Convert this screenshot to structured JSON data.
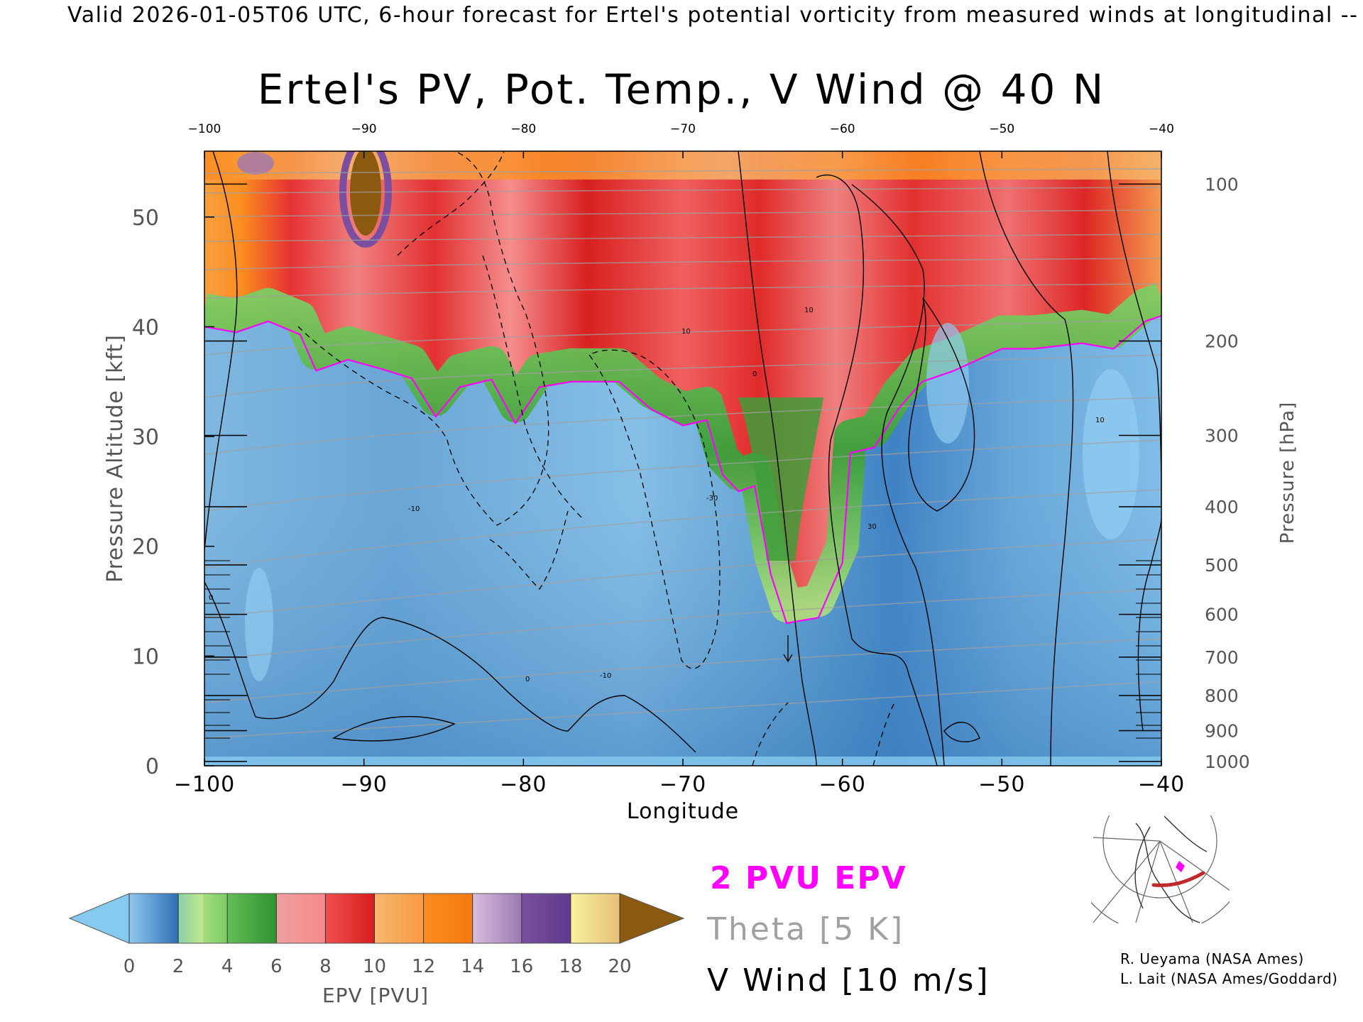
{
  "header": "Valid 2026-01-05T06 UTC, 6-hour forecast for Ertel's potential vorticity from measured winds at longitudinal -- NCE",
  "chart_data": {
    "type": "heatmap",
    "title": "Ertel's PV, Pot. Temp., V Wind @ 40 N",
    "xlabel": "Longitude",
    "ylabel": "Pressure Altitude [kft]",
    "y2label": "Pressure [hPa]",
    "xlim": [
      -100,
      -40
    ],
    "ylim": [
      0,
      56
    ],
    "x_ticks": [
      -100,
      -90,
      -80,
      -70,
      -60,
      -50,
      -40
    ],
    "y_ticks": [
      0,
      10,
      20,
      30,
      40,
      50
    ],
    "pressure_ticks": [
      {
        "hpa": "100",
        "kft": 53.0
      },
      {
        "hpa": "200",
        "kft": 38.7
      },
      {
        "hpa": "300",
        "kft": 30.1
      },
      {
        "hpa": "400",
        "kft": 23.6
      },
      {
        "hpa": "500",
        "kft": 18.3
      },
      {
        "hpa": "600",
        "kft": 13.8
      },
      {
        "hpa": "700",
        "kft": 9.9
      },
      {
        "hpa": "800",
        "kft": 6.4
      },
      {
        "hpa": "900",
        "kft": 3.2
      },
      {
        "hpa": "1000",
        "kft": 0.4
      }
    ],
    "pv_2pvu_boundary": [
      {
        "lon": -100,
        "kft": 40.0
      },
      {
        "lon": -98,
        "kft": 39.5
      },
      {
        "lon": -96,
        "kft": 40.5
      },
      {
        "lon": -94,
        "kft": 39.3
      },
      {
        "lon": -93,
        "kft": 36.0
      },
      {
        "lon": -91,
        "kft": 37.0
      },
      {
        "lon": -89,
        "kft": 36.2
      },
      {
        "lon": -87,
        "kft": 35.3
      },
      {
        "lon": -85.5,
        "kft": 31.8
      },
      {
        "lon": -84,
        "kft": 34.5
      },
      {
        "lon": -82,
        "kft": 35.2
      },
      {
        "lon": -80.5,
        "kft": 31.2
      },
      {
        "lon": -79,
        "kft": 34.5
      },
      {
        "lon": -77,
        "kft": 35.0
      },
      {
        "lon": -74,
        "kft": 35.0
      },
      {
        "lon": -72,
        "kft": 32.5
      },
      {
        "lon": -70,
        "kft": 31.0
      },
      {
        "lon": -68.5,
        "kft": 31.5
      },
      {
        "lon": -67.5,
        "kft": 26.5
      },
      {
        "lon": -66.5,
        "kft": 25.0
      },
      {
        "lon": -65.5,
        "kft": 25.5
      },
      {
        "lon": -64.5,
        "kft": 17.5
      },
      {
        "lon": -63.5,
        "kft": 13.0
      },
      {
        "lon": -61.5,
        "kft": 13.5
      },
      {
        "lon": -60,
        "kft": 18.5
      },
      {
        "lon": -59.5,
        "kft": 28.5
      },
      {
        "lon": -58,
        "kft": 29.0
      },
      {
        "lon": -56.5,
        "kft": 32.5
      },
      {
        "lon": -55,
        "kft": 35.0
      },
      {
        "lon": -53,
        "kft": 36.0
      },
      {
        "lon": -50,
        "kft": 38.0
      },
      {
        "lon": -48,
        "kft": 38.0
      },
      {
        "lon": -45,
        "kft": 38.5
      },
      {
        "lon": -43,
        "kft": 38.0
      },
      {
        "lon": -41,
        "kft": 40.5
      },
      {
        "lon": -40,
        "kft": 41.0
      }
    ],
    "colorbar": {
      "label": "EPV [PVU]",
      "ticks": [
        "0",
        "2",
        "4",
        "6",
        "8",
        "10",
        "12",
        "14",
        "16",
        "18",
        "20"
      ],
      "bins": [
        {
          "from": 0,
          "to": 2,
          "colors": [
            "#8fc8ee",
            "#2f6eb3"
          ]
        },
        {
          "from": 2,
          "to": 3,
          "colors": [
            "#88d0a8",
            "#c4e88a"
          ]
        },
        {
          "from": 3,
          "to": 4,
          "colors": [
            "#a6dc80",
            "#7ccc63"
          ]
        },
        {
          "from": 4,
          "to": 6,
          "colors": [
            "#64bd57",
            "#2e9431"
          ]
        },
        {
          "from": 6,
          "to": 8,
          "colors": [
            "#f0a0a0",
            "#f48a8a"
          ]
        },
        {
          "from": 8,
          "to": 10,
          "colors": [
            "#f05050",
            "#d81c1c"
          ]
        },
        {
          "from": 10,
          "to": 12,
          "colors": [
            "#f6b76f",
            "#fa9a42"
          ]
        },
        {
          "from": 12,
          "to": 14,
          "colors": [
            "#fb8c1f",
            "#f47a12"
          ]
        },
        {
          "from": 14,
          "to": 16,
          "colors": [
            "#d8bedd",
            "#9d78b4"
          ]
        },
        {
          "from": 16,
          "to": 18,
          "colors": [
            "#7c4ea0",
            "#5e3a8d"
          ]
        },
        {
          "from": 18,
          "to": 20,
          "colors": [
            "#f8f2a0",
            "#e8c078"
          ]
        }
      ],
      "under_color": "#86caf0",
      "over_color": "#8b5a10"
    },
    "legend_entries": [
      {
        "label": "2 PVU EPV",
        "color": "#ff00ff"
      },
      {
        "label": "Theta [5 K]",
        "color": "#a0a0a0"
      },
      {
        "label": "V Wind [10 m/s]",
        "color": "#000000"
      }
    ],
    "grid": false
  },
  "credits": [
    "R. Ueyama (NASA Ames)",
    "L. Lait (NASA Ames/Goddard)"
  ],
  "colors": {
    "pv_contour": "#ff00ff",
    "theta": "#a0a0a0",
    "wind": "#000000",
    "map_track": "#cc2a2a"
  }
}
